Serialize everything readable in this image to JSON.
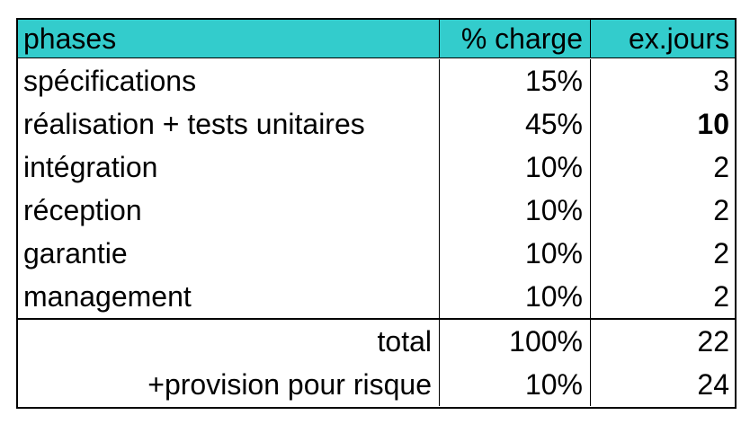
{
  "headers": {
    "phases": "phases",
    "charge": "% charge",
    "jours": "ex.jours"
  },
  "rows": [
    {
      "phase": "spécifications",
      "charge": "15%",
      "jours": "3"
    },
    {
      "phase": "réalisation + tests unitaires",
      "charge": "45%",
      "jours": "10"
    },
    {
      "phase": "intégration",
      "charge": "10%",
      "jours": "2"
    },
    {
      "phase": "réception",
      "charge": "10%",
      "jours": "2"
    },
    {
      "phase": "garantie",
      "charge": "10%",
      "jours": "2"
    },
    {
      "phase": "management",
      "charge": "10%",
      "jours": "2"
    }
  ],
  "total": {
    "label": "total",
    "charge": "100%",
    "jours": "22"
  },
  "provision": {
    "label": "+provision pour risque",
    "charge": "10%",
    "jours": "24"
  },
  "colors": {
    "header_bg": "#33cccc"
  }
}
